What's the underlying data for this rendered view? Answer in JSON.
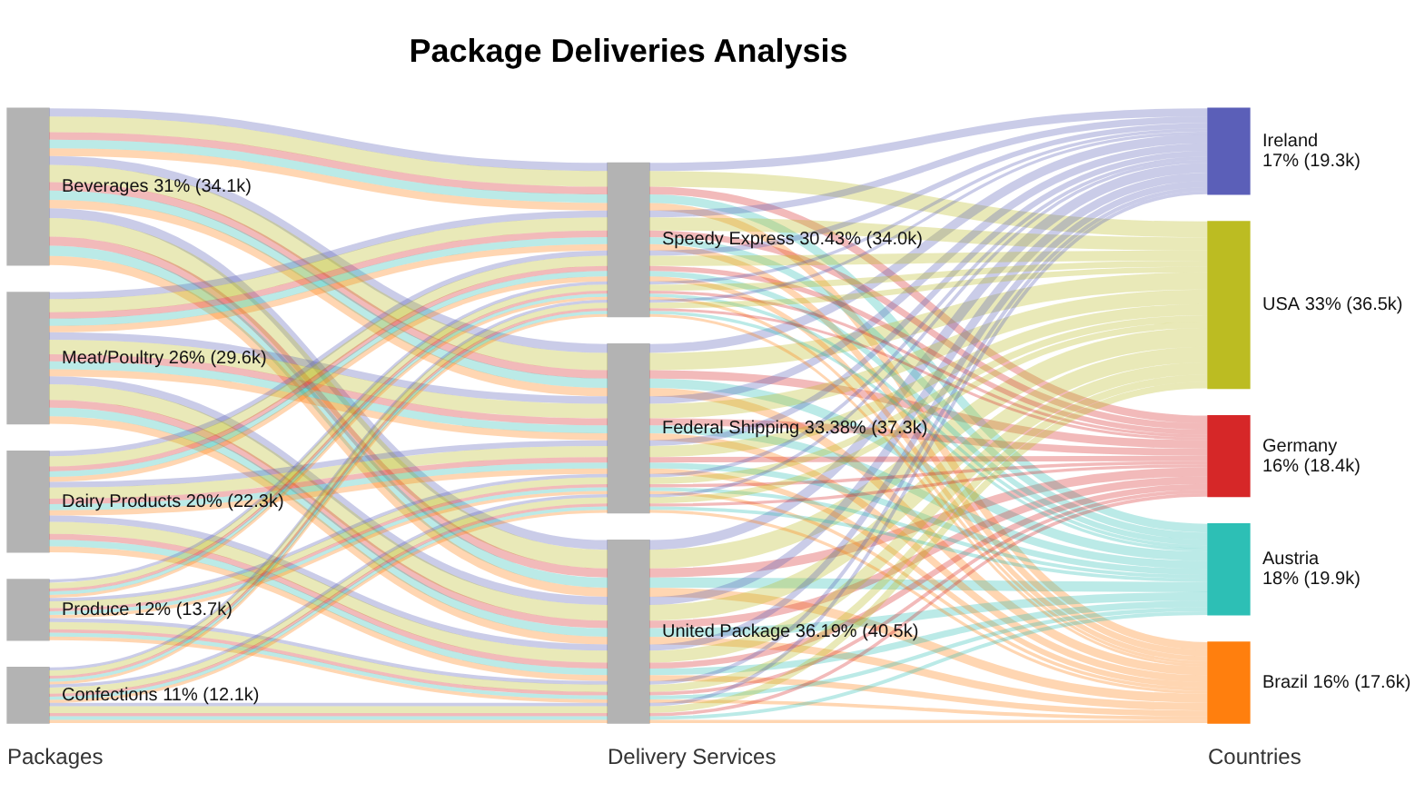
{
  "chart_data": {
    "type": "other",
    "title": "Package Deliveries Analysis",
    "categories": [
      "Packages",
      "Delivery Services",
      "Countries"
    ],
    "series": [
      {
        "name": "Beverages",
        "colors": [
          "#b3b3b3",
          null,
          null
        ],
        "values": [
          31,
          null,
          null
        ],
        "value_labels": [
          "31% (34.1k)",
          null,
          null
        ]
      },
      {
        "name": "Meat/Poultry",
        "colors": [
          "#b3b3b3",
          null,
          null
        ],
        "values": [
          26,
          null,
          null
        ],
        "value_labels": [
          "26% (29.6k)",
          null,
          null
        ]
      },
      {
        "name": "Dairy Products",
        "colors": [
          "#b3b3b3",
          null,
          null
        ],
        "values": [
          20,
          null,
          null
        ],
        "value_labels": [
          "20% (22.3k)",
          null,
          null
        ]
      },
      {
        "name": "Produce",
        "colors": [
          "#b3b3b3",
          null,
          null
        ],
        "values": [
          12,
          null,
          null
        ],
        "value_labels": [
          "12% (13.7k)",
          null,
          null
        ]
      },
      {
        "name": "Confections",
        "colors": [
          "#b3b3b3",
          null,
          null
        ],
        "values": [
          11,
          null,
          null
        ],
        "value_labels": [
          "11% (12.1k)",
          null,
          null
        ]
      },
      {
        "name": "Speedy Express",
        "colors": [
          null,
          "#b3b3b3",
          null
        ],
        "values": [
          null,
          30.43,
          null
        ],
        "value_labels": [
          null,
          "30.43% (34.0k)",
          null
        ]
      },
      {
        "name": "Federal Shipping",
        "colors": [
          null,
          "#b3b3b3",
          null
        ],
        "values": [
          null,
          33.38,
          null
        ],
        "value_labels": [
          null,
          "33.38% (37.3k)",
          null
        ]
      },
      {
        "name": "United Package",
        "colors": [
          null,
          "#b3b3b3",
          null
        ],
        "values": [
          null,
          36.19,
          null
        ],
        "value_labels": [
          null,
          "36.19% (40.5k)",
          null
        ]
      },
      {
        "name": "Ireland",
        "colors": [
          null,
          null,
          "#5b5fb8"
        ],
        "values": [
          null,
          null,
          17
        ],
        "value_labels": [
          null,
          null,
          "17% (19.3k)"
        ]
      },
      {
        "name": "USA",
        "colors": [
          null,
          null,
          "#bcbc22"
        ],
        "values": [
          null,
          null,
          33
        ],
        "value_labels": [
          null,
          null,
          "33% (36.5k)"
        ]
      },
      {
        "name": "Germany",
        "colors": [
          null,
          null,
          "#d62728"
        ],
        "values": [
          null,
          null,
          16
        ],
        "value_labels": [
          null,
          null,
          "16% (18.4k)"
        ]
      },
      {
        "name": "Austria",
        "colors": [
          null,
          null,
          "#2dbfb5"
        ],
        "values": [
          null,
          null,
          18
        ],
        "value_labels": [
          null,
          null,
          "18% (19.9k)"
        ]
      },
      {
        "name": "Brazil",
        "colors": [
          null,
          null,
          "#ff7f0e"
        ],
        "values": [
          null,
          null,
          16
        ],
        "value_labels": [
          null,
          null,
          "16% (17.6k)"
        ]
      }
    ]
  }
}
